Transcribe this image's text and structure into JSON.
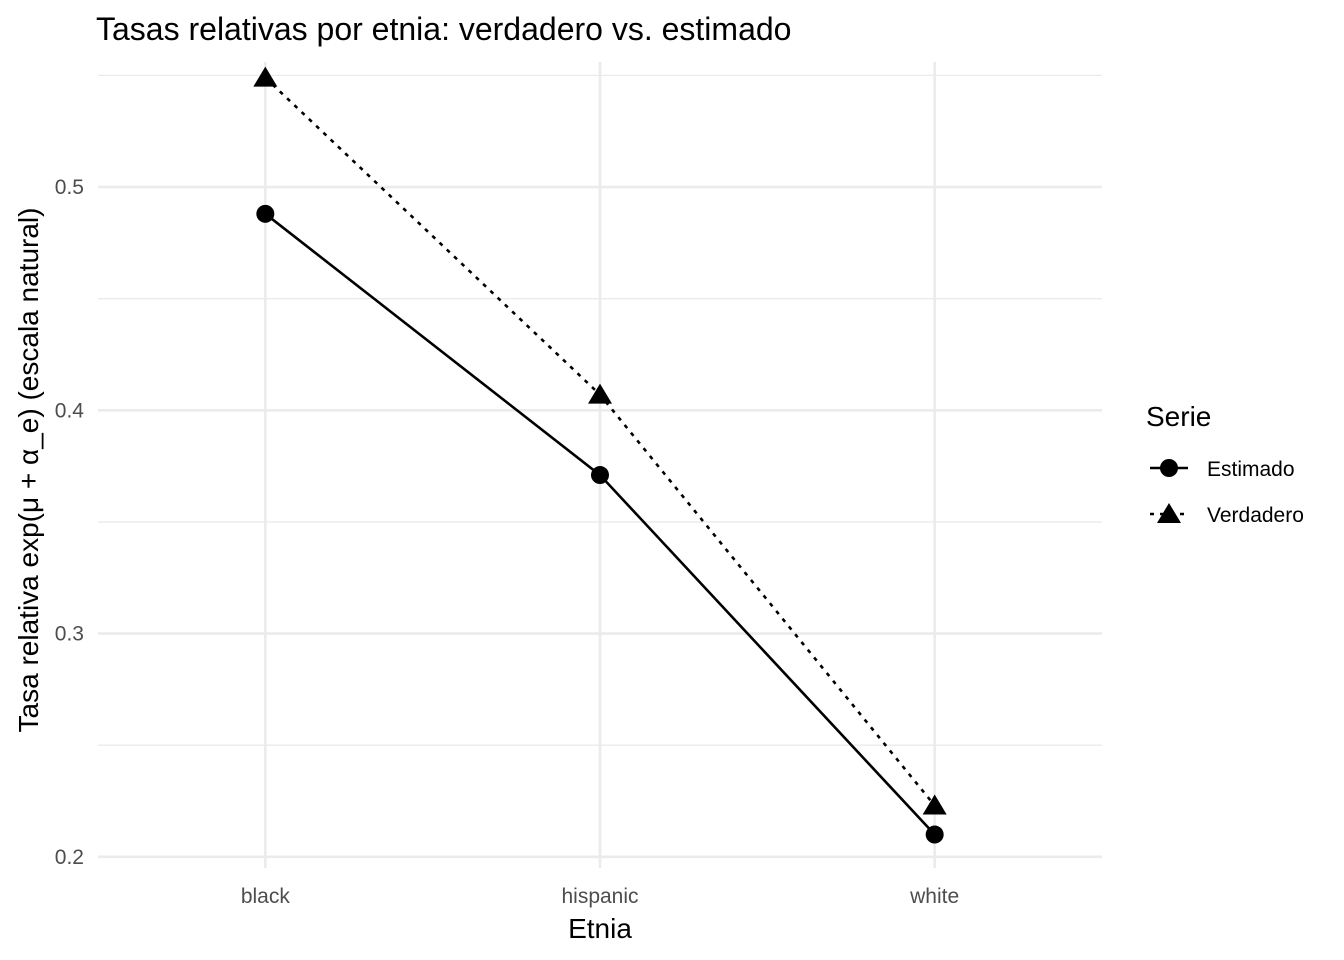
{
  "chart_data": {
    "type": "line",
    "title": "Tasas relativas por etnia: verdadero vs. estimado",
    "xlabel": "Etnia",
    "ylabel": "Tasa relativa exp(μ + α_e) (escala natural)",
    "categories": [
      "black",
      "hispanic",
      "white"
    ],
    "ylim": [
      0.195,
      0.556
    ],
    "y_ticks": [
      0.2,
      0.3,
      0.4,
      0.5
    ],
    "y_tick_labels": [
      "0.2",
      "0.3",
      "0.4",
      "0.5"
    ],
    "grid": true,
    "legend": {
      "title": "Serie",
      "position": "right"
    },
    "series": [
      {
        "name": "Estimado",
        "values": [
          0.488,
          0.371,
          0.21
        ],
        "line_style": "solid",
        "marker": "circle",
        "color": "#000000"
      },
      {
        "name": "Verdadero",
        "values": [
          0.549,
          0.407,
          0.223
        ],
        "line_style": "dotted",
        "marker": "triangle",
        "color": "#000000"
      }
    ]
  }
}
